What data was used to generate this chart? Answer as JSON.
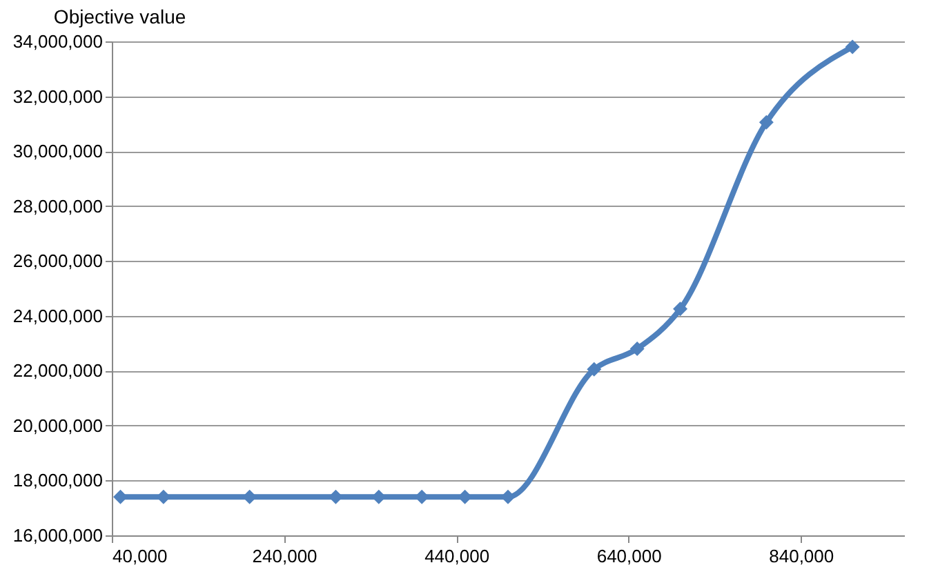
{
  "chart_data": {
    "type": "line",
    "title": "Objective value",
    "x": [
      50000,
      100000,
      200000,
      300000,
      350000,
      400000,
      450000,
      500000,
      600000,
      650000,
      700000,
      800000,
      900000
    ],
    "series": [
      {
        "color": "#4f81bd",
        "values": [
          17400000,
          17400000,
          17400000,
          17400000,
          17400000,
          17400000,
          17400000,
          17400000,
          22050000,
          22800000,
          24250000,
          31050000,
          33800000
        ]
      }
    ],
    "xlim": [
      40000,
      960000
    ],
    "xticks": [
      {
        "value": 40000,
        "label": "40,000"
      },
      {
        "value": 240000,
        "label": "240,000"
      },
      {
        "value": 440000,
        "label": "440,000"
      },
      {
        "value": 640000,
        "label": "640,000"
      },
      {
        "value": 840000,
        "label": "840,000"
      }
    ],
    "ylim": [
      16000000,
      34000000
    ],
    "yticks": [
      {
        "value": 16000000,
        "label": "16,000,000"
      },
      {
        "value": 18000000,
        "label": "18,000,000"
      },
      {
        "value": 20000000,
        "label": "20,000,000"
      },
      {
        "value": 22000000,
        "label": "22,000,000"
      },
      {
        "value": 24000000,
        "label": "24,000,000"
      },
      {
        "value": 26000000,
        "label": "26,000,000"
      },
      {
        "value": 28000000,
        "label": "28,000,000"
      },
      {
        "value": 30000000,
        "label": "30,000,000"
      },
      {
        "value": 32000000,
        "label": "32,000,000"
      },
      {
        "value": 34000000,
        "label": "34,000,000"
      }
    ],
    "grid": "y",
    "marker": "diamond",
    "line_style": "solid"
  }
}
